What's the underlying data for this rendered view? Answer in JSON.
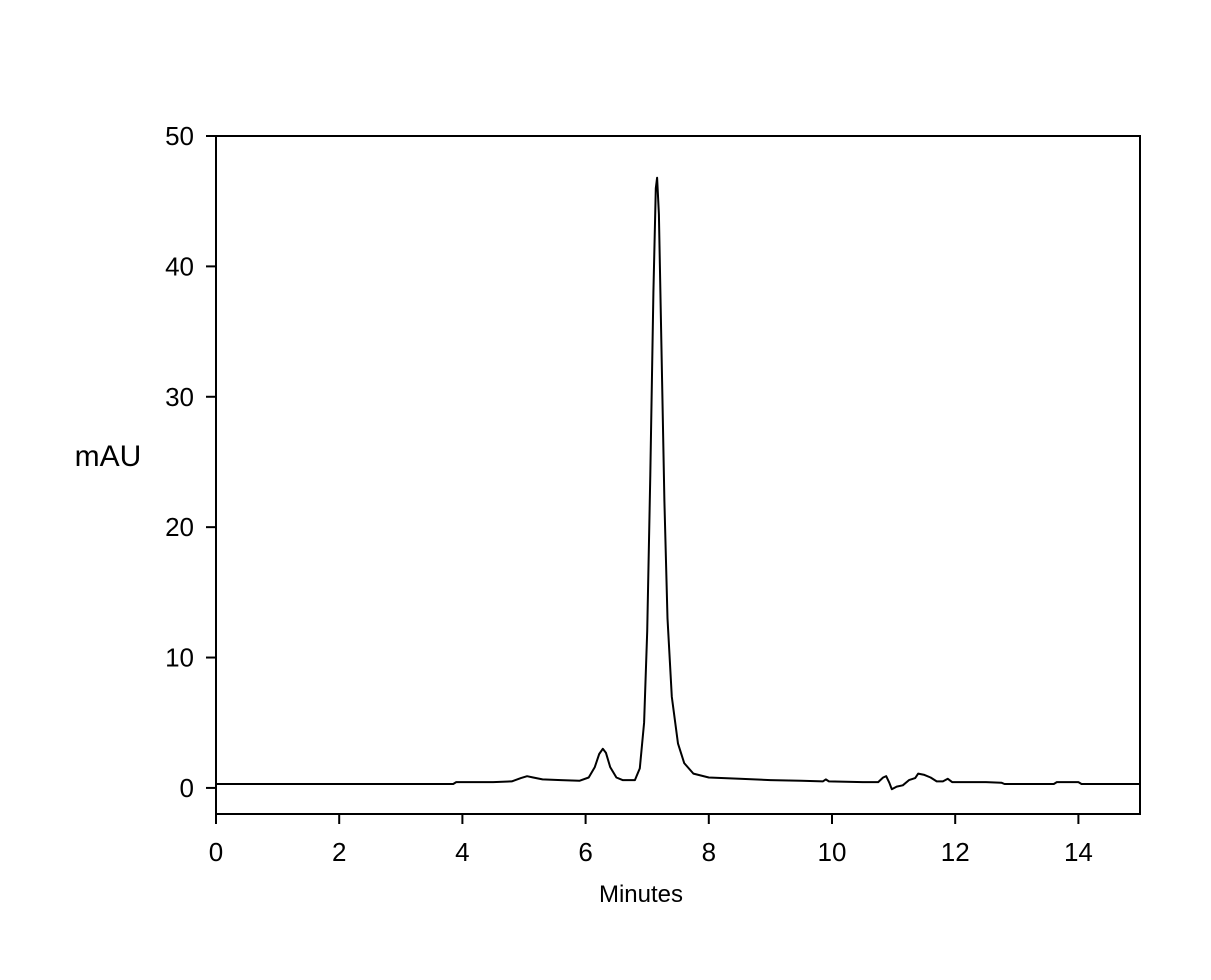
{
  "chart_data": {
    "type": "line",
    "title": "",
    "xlabel": "Minutes",
    "ylabel": "mAU",
    "xlim": [
      0,
      15
    ],
    "ylim": [
      -2,
      50
    ],
    "x_ticks": [
      0,
      2,
      4,
      6,
      8,
      10,
      12,
      14
    ],
    "y_ticks": [
      0,
      10,
      20,
      30,
      40,
      50
    ],
    "x_tick_labels": [
      "0",
      "2",
      "4",
      "6",
      "8",
      "10",
      "12",
      "14"
    ],
    "y_tick_labels": [
      "0",
      "10",
      "20",
      "30",
      "40",
      "50"
    ],
    "grid": false,
    "legend": "none",
    "series": [
      {
        "color": "#000000",
        "points": [
          [
            0.0,
            0.3
          ],
          [
            1.0,
            0.3
          ],
          [
            2.0,
            0.3
          ],
          [
            3.0,
            0.3
          ],
          [
            3.85,
            0.3
          ],
          [
            3.9,
            0.45
          ],
          [
            4.5,
            0.45
          ],
          [
            4.8,
            0.5
          ],
          [
            4.95,
            0.75
          ],
          [
            5.05,
            0.9
          ],
          [
            5.15,
            0.8
          ],
          [
            5.3,
            0.65
          ],
          [
            5.6,
            0.6
          ],
          [
            5.9,
            0.55
          ],
          [
            6.05,
            0.8
          ],
          [
            6.15,
            1.6
          ],
          [
            6.22,
            2.6
          ],
          [
            6.28,
            3.0
          ],
          [
            6.33,
            2.7
          ],
          [
            6.4,
            1.6
          ],
          [
            6.5,
            0.8
          ],
          [
            6.6,
            0.6
          ],
          [
            6.8,
            0.6
          ],
          [
            6.88,
            1.5
          ],
          [
            6.95,
            5.0
          ],
          [
            7.0,
            12.0
          ],
          [
            7.05,
            24.0
          ],
          [
            7.1,
            38.0
          ],
          [
            7.14,
            46.0
          ],
          [
            7.16,
            46.8
          ],
          [
            7.19,
            44.0
          ],
          [
            7.23,
            34.0
          ],
          [
            7.28,
            22.0
          ],
          [
            7.33,
            13.0
          ],
          [
            7.4,
            7.0
          ],
          [
            7.5,
            3.4
          ],
          [
            7.6,
            1.9
          ],
          [
            7.75,
            1.1
          ],
          [
            8.0,
            0.8
          ],
          [
            8.5,
            0.7
          ],
          [
            9.0,
            0.6
          ],
          [
            9.5,
            0.55
          ],
          [
            9.85,
            0.5
          ],
          [
            9.9,
            0.65
          ],
          [
            9.95,
            0.5
          ],
          [
            10.5,
            0.45
          ],
          [
            10.75,
            0.45
          ],
          [
            10.83,
            0.8
          ],
          [
            10.88,
            0.9
          ],
          [
            10.93,
            0.4
          ],
          [
            10.97,
            -0.1
          ],
          [
            11.05,
            0.1
          ],
          [
            11.15,
            0.2
          ],
          [
            11.25,
            0.6
          ],
          [
            11.35,
            0.75
          ],
          [
            11.4,
            1.1
          ],
          [
            11.5,
            1.0
          ],
          [
            11.6,
            0.8
          ],
          [
            11.7,
            0.5
          ],
          [
            11.8,
            0.5
          ],
          [
            11.88,
            0.7
          ],
          [
            11.95,
            0.45
          ],
          [
            12.2,
            0.45
          ],
          [
            12.5,
            0.45
          ],
          [
            12.75,
            0.4
          ],
          [
            12.8,
            0.3
          ],
          [
            13.0,
            0.3
          ],
          [
            13.6,
            0.3
          ],
          [
            13.65,
            0.45
          ],
          [
            14.0,
            0.45
          ],
          [
            14.05,
            0.3
          ],
          [
            15.0,
            0.3
          ]
        ]
      }
    ]
  }
}
